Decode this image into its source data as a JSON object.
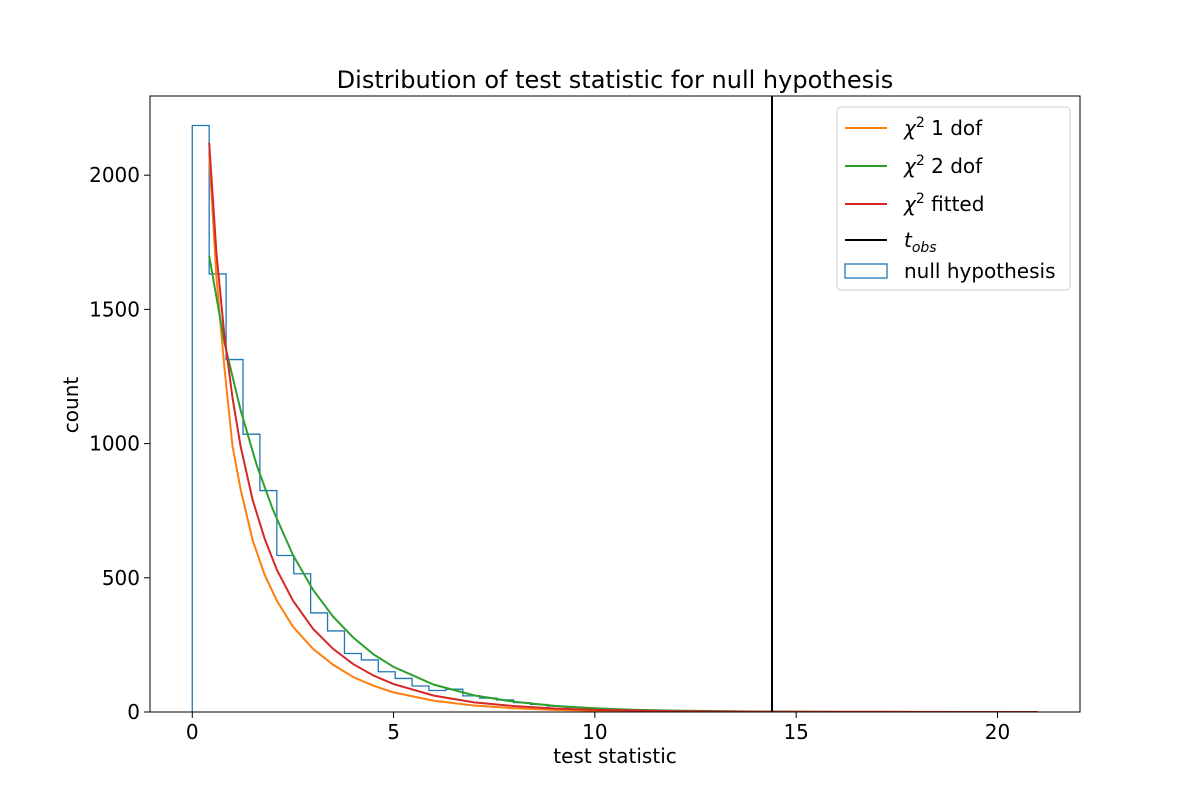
{
  "chart_data": {
    "type": "line",
    "title": "Distribution of test statistic for null hypothesis",
    "xlabel": "test statistic",
    "ylabel": "count",
    "xlim": [
      -1.05,
      22.05
    ],
    "ylim": [
      0,
      2295
    ],
    "x_ticks": [
      0,
      5,
      10,
      15,
      20
    ],
    "y_ticks": [
      0,
      500,
      1000,
      1500,
      2000
    ],
    "grid": false,
    "legend_position": "upper right",
    "histogram": {
      "name": "null hypothesis",
      "color": "#1f77b4",
      "bin_edges": [
        0,
        0.42,
        0.84,
        1.26,
        1.68,
        2.1,
        2.52,
        2.94,
        3.36,
        3.78,
        4.2,
        4.62,
        5.04,
        5.46,
        5.88,
        6.3,
        6.72,
        7.14,
        7.56,
        7.98,
        8.4,
        8.82,
        9.24,
        9.66,
        10.08,
        10.5,
        10.92,
        11.34,
        11.76
      ],
      "counts": [
        2185,
        1632,
        1313,
        1035,
        825,
        583,
        515,
        369,
        302,
        218,
        194,
        150,
        125,
        97,
        80,
        85,
        60,
        52,
        45,
        35,
        28,
        22,
        18,
        14,
        11,
        9,
        7,
        5
      ]
    },
    "series": [
      {
        "name": "χ² 1 dof",
        "color": "#ff7f0e",
        "x": [
          0.42,
          0.6,
          0.8,
          1.0,
          1.2,
          1.5,
          1.8,
          2.1,
          2.5,
          3.0,
          3.5,
          4.0,
          4.5,
          5.0,
          6.0,
          7.0,
          8.0,
          9.0,
          10.0,
          12.0,
          14.0,
          16.0,
          18.0,
          21.0
        ],
        "y": [
          2080,
          1620,
          1280,
          990,
          830,
          640,
          510,
          415,
          318,
          235,
          176,
          130,
          98,
          73,
          42,
          24,
          14,
          8,
          5,
          2,
          1,
          0.5,
          0.3,
          0.1
        ]
      },
      {
        "name": "χ² 2 dof",
        "color": "#2ca02c",
        "x": [
          0.42,
          0.8,
          1.2,
          1.6,
          2.0,
          2.5,
          3.0,
          3.5,
          4.0,
          4.5,
          5.0,
          6.0,
          7.0,
          8.0,
          9.0,
          10.0,
          11.0,
          12.0,
          14.0,
          16.0,
          18.0,
          21.0
        ],
        "y": [
          1700,
          1375,
          1125,
          920,
          755,
          585,
          455,
          355,
          277,
          215,
          168,
          102,
          62,
          38,
          23,
          14,
          8,
          5,
          2,
          0.5,
          0.2,
          0.05
        ]
      },
      {
        "name": "χ² fitted",
        "color": "#d62728",
        "x": [
          0.42,
          0.6,
          0.8,
          1.0,
          1.2,
          1.5,
          1.8,
          2.1,
          2.5,
          3.0,
          3.5,
          4.0,
          4.5,
          5.0,
          6.0,
          7.0,
          8.0,
          9.0,
          10.0,
          12.0,
          14.0,
          16.0,
          18.0,
          21.0
        ],
        "y": [
          2120,
          1710,
          1400,
          1170,
          990,
          790,
          645,
          530,
          415,
          310,
          235,
          178,
          136,
          104,
          61,
          36,
          22,
          13,
          8,
          3,
          1,
          0.5,
          0.2,
          0.1
        ]
      }
    ],
    "vline": {
      "name": "t_obs",
      "x": 14.4,
      "color": "#000000"
    }
  }
}
